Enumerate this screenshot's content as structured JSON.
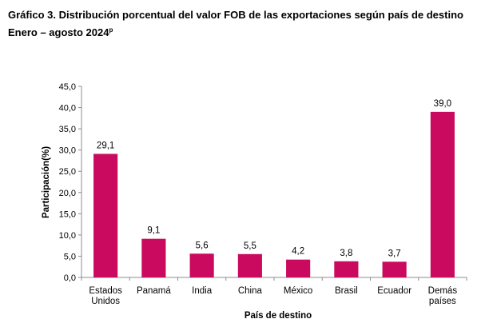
{
  "chart_data": {
    "type": "bar",
    "title": "Gráfico 3. Distribución porcentual del valor FOB de las exportaciones según país de destino",
    "subtitle": "Enero – agosto 2024",
    "subtitle_superscript": "p",
    "xlabel": "País de destino",
    "ylabel": "Participación(%)",
    "ylim": [
      0,
      45
    ],
    "yticks": [
      0,
      5,
      10,
      15,
      20,
      25,
      30,
      35,
      40,
      45
    ],
    "ytick_labels": [
      "0,0",
      "5,0",
      "10,0",
      "15,0",
      "20,0",
      "25,0",
      "30,0",
      "35,0",
      "40,0",
      "45,0"
    ],
    "grid": false,
    "bar_color": "#C90A5E",
    "categories": [
      {
        "lines": [
          "Estados",
          "Unidos"
        ]
      },
      {
        "lines": [
          "Panamá"
        ]
      },
      {
        "lines": [
          "India"
        ]
      },
      {
        "lines": [
          "China"
        ]
      },
      {
        "lines": [
          "México"
        ]
      },
      {
        "lines": [
          "Brasil"
        ]
      },
      {
        "lines": [
          "Ecuador"
        ]
      },
      {
        "lines": [
          "Demás",
          "países"
        ]
      }
    ],
    "values": [
      29.1,
      9.1,
      5.6,
      5.5,
      4.2,
      3.8,
      3.7,
      39.0
    ],
    "value_labels": [
      "29,1",
      "9,1",
      "5,6",
      "5,5",
      "4,2",
      "3,8",
      "3,7",
      "39,0"
    ]
  }
}
